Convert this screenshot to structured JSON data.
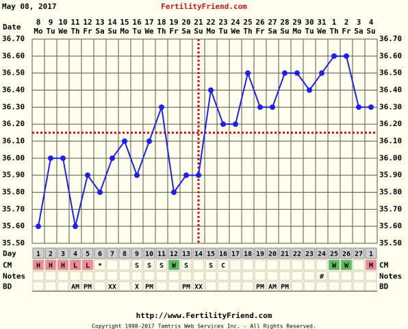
{
  "chart_data": {
    "type": "line",
    "date": "May 08, 2017",
    "title": "FertilityFriend.com",
    "date_label": "Date",
    "dates": [
      "8",
      "9",
      "10",
      "11",
      "12",
      "13",
      "14",
      "15",
      "16",
      "17",
      "18",
      "19",
      "20",
      "21",
      "22",
      "23",
      "24",
      "25",
      "26",
      "27",
      "28",
      "29",
      "30",
      "31",
      "1",
      "2",
      "3",
      "4"
    ],
    "weekdays": [
      "Mo",
      "Tu",
      "We",
      "Th",
      "Fr",
      "Sa",
      "Su",
      "Mo",
      "Tu",
      "We",
      "Th",
      "Fr",
      "Sa",
      "Su",
      "Mo",
      "Tu",
      "We",
      "Th",
      "Fr",
      "Sa",
      "Su",
      "Mo",
      "Tu",
      "We",
      "Th",
      "Fr",
      "Sa",
      "Su"
    ],
    "values": [
      35.6,
      36.0,
      36.0,
      35.6,
      35.9,
      35.8,
      36.0,
      36.1,
      35.9,
      36.1,
      36.3,
      35.8,
      35.9,
      35.9,
      36.4,
      36.2,
      36.2,
      36.5,
      36.3,
      36.3,
      36.5,
      36.5,
      36.4,
      36.5,
      36.6,
      36.6,
      36.3,
      36.3
    ],
    "color": "#1f1fe6",
    "ylim": [
      35.5,
      36.7
    ],
    "yticks": [
      {
        "value": 35.5,
        "label": "35.50"
      },
      {
        "value": 35.6,
        "label": "35.60"
      },
      {
        "value": 35.7,
        "label": "35.70"
      },
      {
        "value": 35.8,
        "label": "35.80"
      },
      {
        "value": 35.9,
        "label": "35.90"
      },
      {
        "value": 36.0,
        "label": "36.00"
      },
      {
        "value": 36.1,
        "label": "36.10"
      },
      {
        "value": 36.2,
        "label": "36.20"
      },
      {
        "value": 36.3,
        "label": "36.30"
      },
      {
        "value": 36.4,
        "label": "36.40"
      },
      {
        "value": 36.5,
        "label": "36.50"
      },
      {
        "value": 36.6,
        "label": "36.60"
      },
      {
        "value": 36.7,
        "label": "36.70"
      }
    ],
    "coverline": 36.15,
    "ovulation_index": 13,
    "line_color": "#cc1111",
    "rows": [
      {
        "label": "Day",
        "cells": [
          "1",
          "2",
          "3",
          "4",
          "5",
          "6",
          "7",
          "8",
          "9",
          "10",
          "11",
          "12",
          "13",
          "14",
          "15",
          "16",
          "17",
          "18",
          "19",
          "20",
          "21",
          "22",
          "23",
          "24",
          "25",
          "26",
          "27",
          "1"
        ]
      },
      {
        "label": "CM",
        "cells": [
          "H",
          "H",
          "H",
          "L",
          "L",
          "*",
          null,
          null,
          "S",
          "S",
          "S",
          "W",
          "S",
          null,
          "S",
          "C",
          null,
          null,
          null,
          null,
          null,
          null,
          null,
          null,
          "W",
          "W",
          null,
          "M"
        ]
      },
      {
        "label": "Notes",
        "cells": [
          null,
          null,
          null,
          null,
          null,
          null,
          null,
          null,
          null,
          null,
          null,
          null,
          null,
          null,
          null,
          null,
          null,
          null,
          null,
          null,
          null,
          null,
          null,
          "#",
          null,
          null,
          null,
          null
        ]
      },
      {
        "label": "BD",
        "cells": [
          null,
          null,
          null,
          "AM",
          "PM",
          null,
          "XX",
          null,
          "X",
          "PM",
          null,
          null,
          "PM",
          "XX",
          null,
          null,
          null,
          null,
          "PM",
          "AM",
          "PM",
          null,
          null,
          null,
          null,
          null,
          null,
          null
        ]
      }
    ],
    "cell_colors": {
      "H": "#f08a9a",
      "L": "#f08a9a",
      "M": "#f08a9a",
      "W": "#5cb85c"
    },
    "footer_url": "http://www.FertilityFriend.com",
    "copyright": "Copyright 1998-2017 Tamtris Web Services Inc. - All Rights Reserved."
  }
}
